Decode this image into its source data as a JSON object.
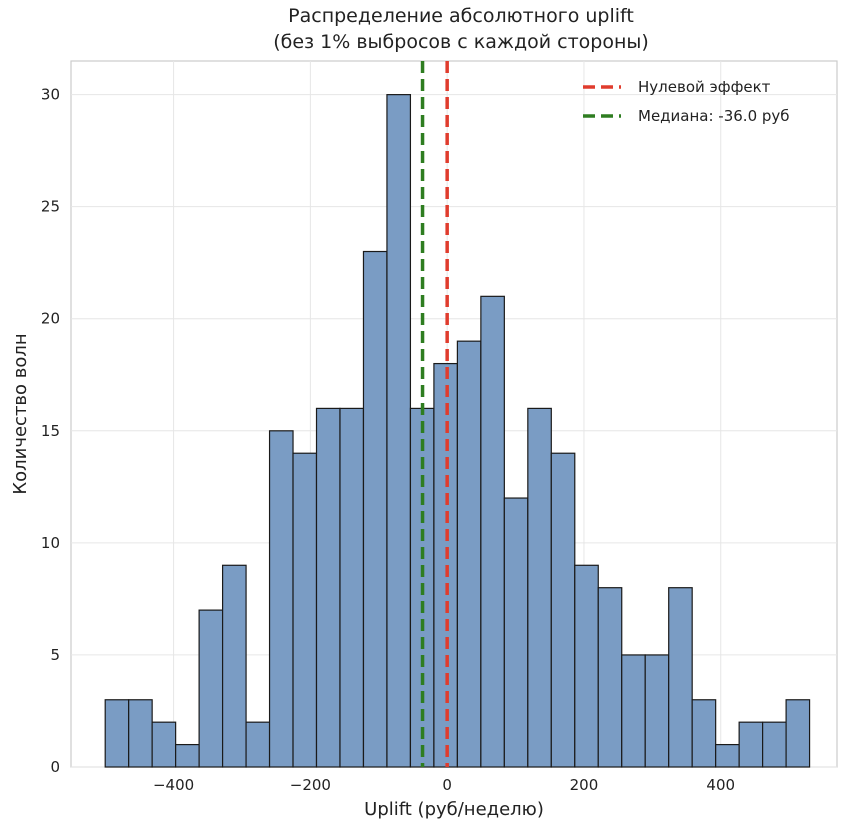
{
  "chart_data": {
    "type": "histogram",
    "title": [
      "Распределение абсолютного uplift",
      "(без 1% выбросов с каждой стороны)"
    ],
    "xlabel": "Uplift (руб/неделю)",
    "ylabel": "Количество волн",
    "xlim": [
      -550,
      570
    ],
    "ylim": [
      0,
      31.5
    ],
    "grid": true,
    "x_ticks": [
      {
        "value": -400,
        "label": "−400"
      },
      {
        "value": -200,
        "label": "−200"
      },
      {
        "value": 0,
        "label": "0"
      },
      {
        "value": 200,
        "label": "200"
      },
      {
        "value": 400,
        "label": "400"
      }
    ],
    "y_ticks": [
      {
        "value": 0,
        "label": "0"
      },
      {
        "value": 5,
        "label": "5"
      },
      {
        "value": 10,
        "label": "10"
      },
      {
        "value": 15,
        "label": "15"
      },
      {
        "value": 20,
        "label": "20"
      },
      {
        "value": 25,
        "label": "25"
      },
      {
        "value": 30,
        "label": "30"
      }
    ],
    "bin_start": -500,
    "bin_width": 34.33,
    "counts": [
      3,
      3,
      2,
      1,
      7,
      9,
      2,
      15,
      14,
      16,
      16,
      23,
      30,
      16,
      18,
      19,
      21,
      12,
      16,
      14,
      9,
      8,
      5,
      5,
      8,
      3,
      1,
      2,
      2,
      3
    ],
    "bar_color": "#7a9cc4",
    "bar_edge_color": "#1a1a1a",
    "reference_lines": [
      {
        "name": "Нулевой эффект",
        "value": 0,
        "color": "#e03c2d"
      },
      {
        "name": "Медиана: -36.0 руб",
        "value": -36,
        "color": "#2e7d20"
      }
    ],
    "legend_position": "top-right"
  }
}
